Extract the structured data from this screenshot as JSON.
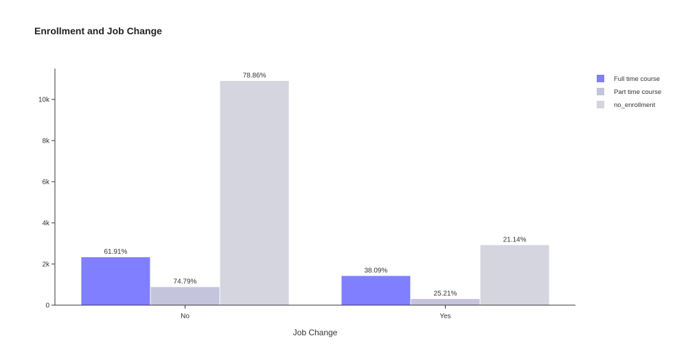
{
  "chart_data": {
    "type": "bar",
    "title": "Enrollment and Job Change",
    "xlabel": "Job Change",
    "ylabel": "",
    "categories": [
      "No",
      "Yes"
    ],
    "ylim": [
      0,
      11500
    ],
    "yticks": [
      0,
      2000,
      4000,
      6000,
      8000,
      10000
    ],
    "ytick_labels": [
      "0",
      "2k",
      "4k",
      "6k",
      "8k",
      "10k"
    ],
    "legend_position": "top-right",
    "grid": false,
    "series": [
      {
        "name": "Full time course",
        "color": "#7f7fff",
        "values": [
          2330,
          1420
        ],
        "labels": [
          "61.91%",
          "38.09%"
        ]
      },
      {
        "name": "Part time course",
        "color": "#c4c4dd",
        "values": [
          880,
          300
        ],
        "labels": [
          "74.79%",
          "25.21%"
        ]
      },
      {
        "name": "no_enrollment",
        "color": "#d5d5e0",
        "values": [
          10900,
          2920
        ],
        "labels": [
          "78.86%",
          "21.14%"
        ]
      }
    ]
  }
}
